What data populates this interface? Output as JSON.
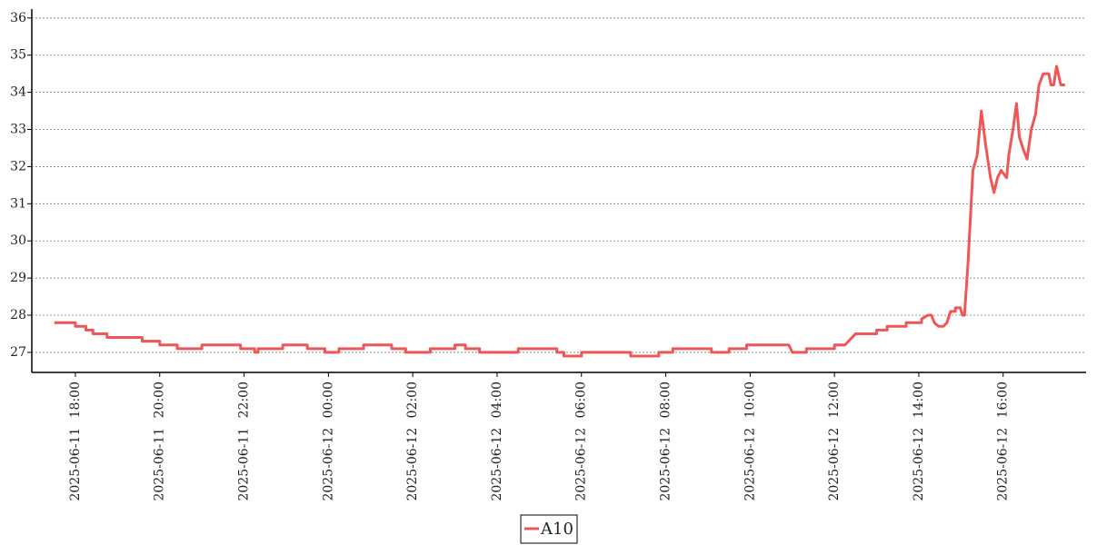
{
  "chart_data": {
    "type": "line",
    "x": [
      "2025-06-11 17:30",
      "2025-06-11 18:00",
      "2025-06-11 18:00",
      "2025-06-11 18:15",
      "2025-06-11 18:15",
      "2025-06-11 18:25",
      "2025-06-11 18:25",
      "2025-06-11 18:45",
      "2025-06-11 18:45",
      "2025-06-11 19:35",
      "2025-06-11 19:35",
      "2025-06-11 20:00",
      "2025-06-11 20:00",
      "2025-06-11 20:25",
      "2025-06-11 20:25",
      "2025-06-11 21:00",
      "2025-06-11 21:00",
      "2025-06-11 21:55",
      "2025-06-11 21:55",
      "2025-06-11 22:15",
      "2025-06-11 22:15",
      "2025-06-11 22:20",
      "2025-06-11 22:20",
      "2025-06-11 22:55",
      "2025-06-11 22:55",
      "2025-06-11 23:30",
      "2025-06-11 23:30",
      "2025-06-11 23:55",
      "2025-06-11 23:55",
      "2025-06-12 00:15",
      "2025-06-12 00:15",
      "2025-06-12 00:50",
      "2025-06-12 00:50",
      "2025-06-12 01:30",
      "2025-06-12 01:30",
      "2025-06-12 01:50",
      "2025-06-12 01:50",
      "2025-06-12 02:25",
      "2025-06-12 02:25",
      "2025-06-12 03:00",
      "2025-06-12 03:00",
      "2025-06-12 03:15",
      "2025-06-12 03:15",
      "2025-06-12 03:35",
      "2025-06-12 03:35",
      "2025-06-12 04:30",
      "2025-06-12 04:30",
      "2025-06-12 05:25",
      "2025-06-12 05:25",
      "2025-06-12 05:35",
      "2025-06-12 05:35",
      "2025-06-12 06:00",
      "2025-06-12 06:00",
      "2025-06-12 07:10",
      "2025-06-12 07:10",
      "2025-06-12 07:50",
      "2025-06-12 07:50",
      "2025-06-12 08:10",
      "2025-06-12 08:10",
      "2025-06-12 09:05",
      "2025-06-12 09:05",
      "2025-06-12 09:30",
      "2025-06-12 09:30",
      "2025-06-12 09:55",
      "2025-06-12 09:55",
      "2025-06-12 10:55",
      "2025-06-12 11:00",
      "2025-06-12 11:20",
      "2025-06-12 11:20",
      "2025-06-12 12:00",
      "2025-06-12 12:00",
      "2025-06-12 12:15",
      "2025-06-12 12:20",
      "2025-06-12 12:25",
      "2025-06-12 12:30",
      "2025-06-12 13:00",
      "2025-06-12 13:00",
      "2025-06-12 13:15",
      "2025-06-12 13:15",
      "2025-06-12 13:42",
      "2025-06-12 13:42",
      "2025-06-12 14:04",
      "2025-06-12 14:04",
      "2025-06-12 14:13",
      "2025-06-12 14:18",
      "2025-06-12 14:22",
      "2025-06-12 14:28",
      "2025-06-12 14:35",
      "2025-06-12 14:40",
      "2025-06-12 14:45",
      "2025-06-12 14:52",
      "2025-06-12 14:52",
      "2025-06-12 14:59",
      "2025-06-12 15:02",
      "2025-06-12 15:05",
      "2025-06-12 15:10",
      "2025-06-12 15:17",
      "2025-06-12 15:23",
      "2025-06-12 15:29",
      "2025-06-12 15:35",
      "2025-06-12 15:42",
      "2025-06-12 15:47",
      "2025-06-12 15:52",
      "2025-06-12 15:57",
      "2025-06-12 16:05",
      "2025-06-12 16:08",
      "2025-06-12 16:14",
      "2025-06-12 16:19",
      "2025-06-12 16:23",
      "2025-06-12 16:28",
      "2025-06-12 16:34",
      "2025-06-12 16:40",
      "2025-06-12 16:46",
      "2025-06-12 16:51",
      "2025-06-12 16:57",
      "2025-06-12 17:05",
      "2025-06-12 17:08",
      "2025-06-12 17:12",
      "2025-06-12 17:16",
      "2025-06-12 17:22",
      "2025-06-12 17:28"
    ],
    "series": [
      {
        "name": "A10",
        "color": "#ef5757",
        "values": [
          27.8,
          27.8,
          27.7,
          27.7,
          27.6,
          27.6,
          27.5,
          27.5,
          27.4,
          27.4,
          27.3,
          27.3,
          27.2,
          27.2,
          27.1,
          27.1,
          27.2,
          27.2,
          27.1,
          27.1,
          27.0,
          27.0,
          27.1,
          27.1,
          27.2,
          27.2,
          27.1,
          27.1,
          27.0,
          27.0,
          27.1,
          27.1,
          27.2,
          27.2,
          27.1,
          27.1,
          27.0,
          27.0,
          27.1,
          27.1,
          27.2,
          27.2,
          27.1,
          27.1,
          27.0,
          27.0,
          27.1,
          27.1,
          27.0,
          27.0,
          26.9,
          26.9,
          27.0,
          27.0,
          26.9,
          26.9,
          27.0,
          27.0,
          27.1,
          27.1,
          27.0,
          27.0,
          27.1,
          27.1,
          27.2,
          27.2,
          27.0,
          27.0,
          27.1,
          27.1,
          27.2,
          27.2,
          27.3,
          27.4,
          27.5,
          27.5,
          27.6,
          27.6,
          27.7,
          27.7,
          27.8,
          27.8,
          27.9,
          28.0,
          28.0,
          27.8,
          27.7,
          27.7,
          27.8,
          28.1,
          28.1,
          28.2,
          28.2,
          28.0,
          28.0,
          29.4,
          31.9,
          32.3,
          33.5,
          32.6,
          31.7,
          31.3,
          31.7,
          31.9,
          31.7,
          32.3,
          33.0,
          33.7,
          32.8,
          32.5,
          32.2,
          33.0,
          33.4,
          34.2,
          34.5,
          34.5,
          34.2,
          34.2,
          34.7,
          34.2,
          34.2
        ]
      }
    ],
    "xlim": [
      "2025-06-11 16:58",
      "2025-06-12 17:58"
    ],
    "xticks": [
      "2025-06-11 18:00",
      "2025-06-11 20:00",
      "2025-06-11 22:00",
      "2025-06-12 00:00",
      "2025-06-12 02:00",
      "2025-06-12 04:00",
      "2025-06-12 06:00",
      "2025-06-12 08:00",
      "2025-06-12 10:00",
      "2025-06-12 12:00",
      "2025-06-12 14:00",
      "2025-06-12 16:00"
    ],
    "ylim": [
      26.46,
      36.24
    ],
    "yticks": [
      27,
      28,
      29,
      30,
      31,
      32,
      33,
      34,
      35,
      36
    ],
    "grid": true
  }
}
